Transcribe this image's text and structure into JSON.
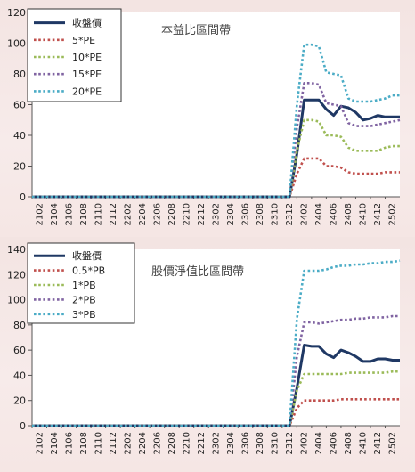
{
  "chart_data": [
    {
      "type": "line",
      "title": "本益比區間帶",
      "ylim": [
        0,
        120
      ],
      "yticks": [
        0,
        20,
        40,
        60,
        80,
        100,
        120
      ],
      "legend_position": "top-left",
      "x_tick_labels": [
        "2102",
        "2104",
        "2106",
        "2108",
        "2110",
        "2112",
        "2202",
        "2204",
        "2206",
        "2208",
        "2210",
        "2212",
        "2302",
        "2304",
        "2306",
        "2308",
        "2310",
        "2312",
        "2402",
        "2404",
        "2406",
        "2408",
        "2410",
        "2412",
        "2502"
      ],
      "series": [
        {
          "name": "收盤價",
          "color": "#1f3864",
          "style": "solid",
          "points": [
            [
              0,
              0
            ],
            [
              35,
              0
            ],
            [
              36,
              28
            ],
            [
              37,
              63
            ],
            [
              38,
              63
            ],
            [
              39,
              63
            ],
            [
              40,
              57
            ],
            [
              41,
              53
            ],
            [
              42,
              59
            ],
            [
              43,
              58
            ],
            [
              44,
              55
            ],
            [
              45,
              50
            ],
            [
              46,
              51
            ],
            [
              47,
              53
            ],
            [
              48,
              52
            ],
            [
              49,
              52
            ],
            [
              50,
              52
            ]
          ]
        },
        {
          "name": "5*PE",
          "color": "#c0504d",
          "style": "dotted",
          "points": [
            [
              0,
              0
            ],
            [
              35,
              0
            ],
            [
              36,
              15
            ],
            [
              37,
              25
            ],
            [
              38,
              25
            ],
            [
              39,
              25
            ],
            [
              40,
              20
            ],
            [
              41,
              20
            ],
            [
              42,
              19
            ],
            [
              43,
              16
            ],
            [
              44,
              15
            ],
            [
              45,
              15
            ],
            [
              46,
              15
            ],
            [
              47,
              15
            ],
            [
              48,
              16
            ],
            [
              49,
              16
            ],
            [
              50,
              16
            ]
          ]
        },
        {
          "name": "10*PE",
          "color": "#9bbb59",
          "style": "dotted",
          "points": [
            [
              0,
              0
            ],
            [
              35,
              0
            ],
            [
              36,
              30
            ],
            [
              37,
              50
            ],
            [
              38,
              50
            ],
            [
              39,
              49
            ],
            [
              40,
              40
            ],
            [
              41,
              40
            ],
            [
              42,
              39
            ],
            [
              43,
              32
            ],
            [
              44,
              30
            ],
            [
              45,
              30
            ],
            [
              46,
              30
            ],
            [
              47,
              30
            ],
            [
              48,
              32
            ],
            [
              49,
              33
            ],
            [
              50,
              33
            ]
          ]
        },
        {
          "name": "15*PE",
          "color": "#8064a2",
          "style": "dotted",
          "points": [
            [
              0,
              0
            ],
            [
              35,
              0
            ],
            [
              36,
              45
            ],
            [
              37,
              74
            ],
            [
              38,
              74
            ],
            [
              39,
              73
            ],
            [
              40,
              61
            ],
            [
              41,
              60
            ],
            [
              42,
              59
            ],
            [
              43,
              48
            ],
            [
              44,
              46
            ],
            [
              45,
              46
            ],
            [
              46,
              46
            ],
            [
              47,
              47
            ],
            [
              48,
              48
            ],
            [
              49,
              49
            ],
            [
              50,
              50
            ]
          ]
        },
        {
          "name": "20*PE",
          "color": "#4bacc6",
          "style": "dotted",
          "points": [
            [
              0,
              0
            ],
            [
              35,
              0
            ],
            [
              36,
              60
            ],
            [
              37,
              99
            ],
            [
              38,
              99
            ],
            [
              39,
              98
            ],
            [
              40,
              81
            ],
            [
              41,
              80
            ],
            [
              42,
              79
            ],
            [
              43,
              64
            ],
            [
              44,
              62
            ],
            [
              45,
              62
            ],
            [
              46,
              62
            ],
            [
              47,
              63
            ],
            [
              48,
              64
            ],
            [
              49,
              66
            ],
            [
              50,
              66
            ]
          ]
        }
      ]
    },
    {
      "type": "line",
      "title": "股價淨值比區間帶",
      "ylim": [
        0,
        140
      ],
      "yticks": [
        0,
        20,
        40,
        60,
        80,
        100,
        120,
        140
      ],
      "legend_position": "top-left",
      "x_tick_labels": [
        "2102",
        "2104",
        "2106",
        "2108",
        "2110",
        "2112",
        "2202",
        "2204",
        "2206",
        "2208",
        "2210",
        "2212",
        "2302",
        "2304",
        "2306",
        "2308",
        "2310",
        "2312",
        "2402",
        "2404",
        "2406",
        "2408",
        "2410",
        "2412",
        "2502"
      ],
      "series": [
        {
          "name": "收盤價",
          "color": "#1f3864",
          "style": "solid",
          "points": [
            [
              0,
              0
            ],
            [
              35,
              0
            ],
            [
              36,
              30
            ],
            [
              37,
              64
            ],
            [
              38,
              63
            ],
            [
              39,
              63
            ],
            [
              40,
              57
            ],
            [
              41,
              54
            ],
            [
              42,
              60
            ],
            [
              43,
              58
            ],
            [
              44,
              55
            ],
            [
              45,
              51
            ],
            [
              46,
              51
            ],
            [
              47,
              53
            ],
            [
              48,
              53
            ],
            [
              49,
              52
            ],
            [
              50,
              52
            ]
          ]
        },
        {
          "name": "0.5*PB",
          "color": "#c0504d",
          "style": "dotted",
          "points": [
            [
              0,
              0
            ],
            [
              35,
              0
            ],
            [
              36,
              14
            ],
            [
              37,
              20
            ],
            [
              38,
              20
            ],
            [
              39,
              20
            ],
            [
              40,
              20
            ],
            [
              41,
              20
            ],
            [
              42,
              21
            ],
            [
              43,
              21
            ],
            [
              44,
              21
            ],
            [
              45,
              21
            ],
            [
              46,
              21
            ],
            [
              47,
              21
            ],
            [
              48,
              21
            ],
            [
              49,
              21
            ],
            [
              50,
              21
            ]
          ]
        },
        {
          "name": "1*PB",
          "color": "#9bbb59",
          "style": "dotted",
          "points": [
            [
              0,
              0
            ],
            [
              35,
              0
            ],
            [
              36,
              28
            ],
            [
              37,
              41
            ],
            [
              38,
              41
            ],
            [
              39,
              41
            ],
            [
              40,
              41
            ],
            [
              41,
              41
            ],
            [
              42,
              41
            ],
            [
              43,
              42
            ],
            [
              44,
              42
            ],
            [
              45,
              42
            ],
            [
              46,
              42
            ],
            [
              47,
              42
            ],
            [
              48,
              42
            ],
            [
              49,
              43
            ],
            [
              50,
              43
            ]
          ]
        },
        {
          "name": "2*PB",
          "color": "#8064a2",
          "style": "dotted",
          "points": [
            [
              0,
              0
            ],
            [
              35,
              0
            ],
            [
              36,
              55
            ],
            [
              37,
              82
            ],
            [
              38,
              82
            ],
            [
              39,
              81
            ],
            [
              40,
              82
            ],
            [
              41,
              83
            ],
            [
              42,
              84
            ],
            [
              43,
              84
            ],
            [
              44,
              85
            ],
            [
              45,
              85
            ],
            [
              46,
              86
            ],
            [
              47,
              86
            ],
            [
              48,
              86
            ],
            [
              49,
              87
            ],
            [
              50,
              87
            ]
          ]
        },
        {
          "name": "3*PB",
          "color": "#4bacc6",
          "style": "dotted",
          "points": [
            [
              0,
              0
            ],
            [
              35,
              0
            ],
            [
              36,
              85
            ],
            [
              37,
              123
            ],
            [
              38,
              123
            ],
            [
              39,
              123
            ],
            [
              40,
              124
            ],
            [
              41,
              126
            ],
            [
              42,
              127
            ],
            [
              43,
              127
            ],
            [
              44,
              128
            ],
            [
              45,
              128
            ],
            [
              46,
              129
            ],
            [
              47,
              129
            ],
            [
              48,
              130
            ],
            [
              49,
              130
            ],
            [
              50,
              131
            ]
          ]
        }
      ]
    }
  ]
}
